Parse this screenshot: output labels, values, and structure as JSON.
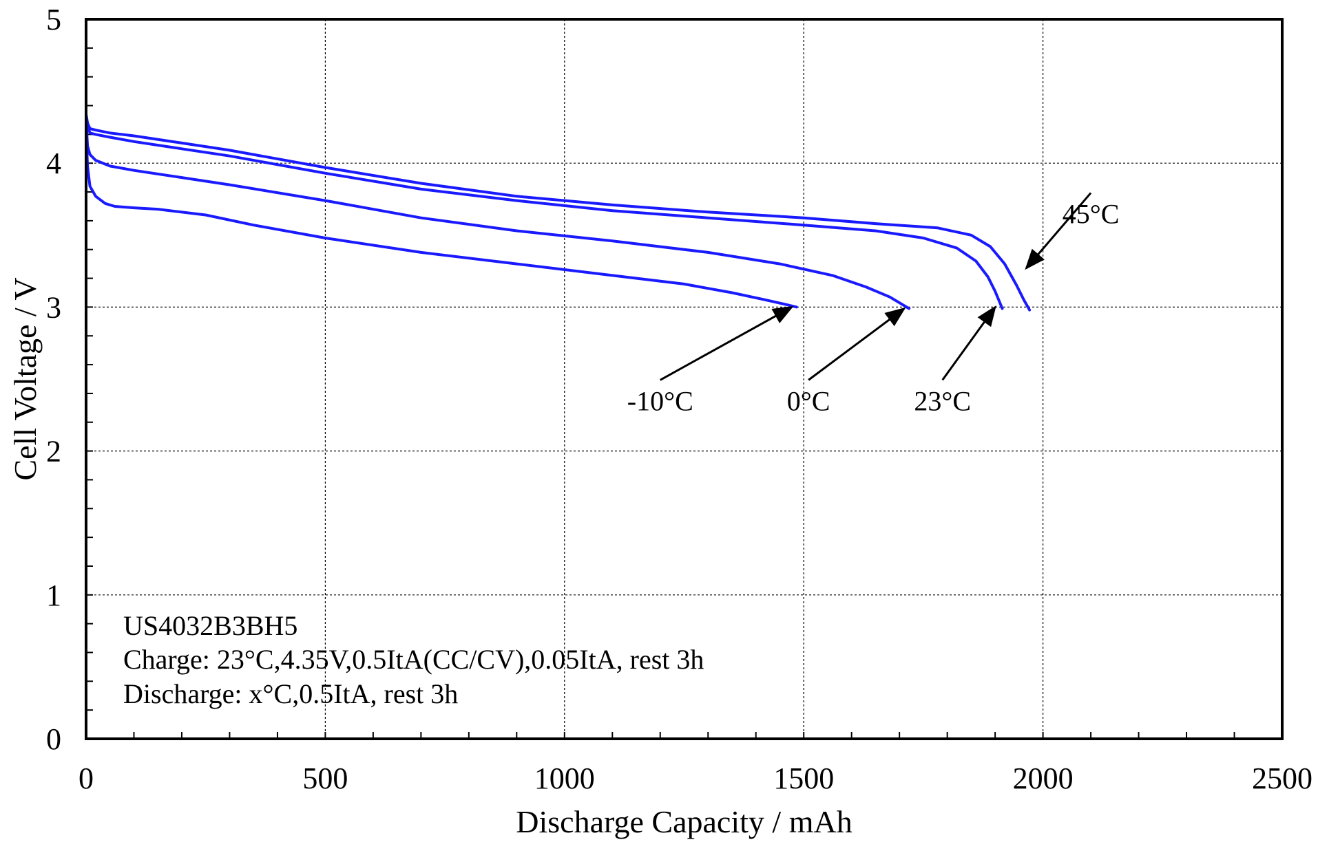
{
  "chart_data": {
    "type": "line",
    "title": "",
    "xlabel": "Discharge Capacity / mAh",
    "ylabel": "Cell Voltage / V",
    "xlim": [
      0,
      2500
    ],
    "ylim": [
      0,
      5
    ],
    "xticks": [
      "0",
      "500",
      "1000",
      "1500",
      "2000",
      "2500"
    ],
    "yticks": [
      "0",
      "1",
      "2",
      "3",
      "4",
      "5"
    ],
    "grid": true,
    "line_color": "#1a1aff",
    "notes": [
      "US4032B3BH5",
      "Charge: 23°C,4.35V,0.5ItA(CC/CV),0.05ItA, rest 3h",
      "Discharge: x°C,0.5ItA, rest 3h"
    ],
    "series": [
      {
        "name": "-10°C",
        "x": [
          0,
          3,
          8,
          20,
          40,
          60,
          100,
          150,
          250,
          350,
          500,
          700,
          900,
          1100,
          1250,
          1350,
          1420,
          1460,
          1485
        ],
        "y": [
          4.22,
          3.98,
          3.84,
          3.77,
          3.72,
          3.7,
          3.69,
          3.68,
          3.64,
          3.57,
          3.48,
          3.38,
          3.3,
          3.22,
          3.16,
          3.1,
          3.05,
          3.02,
          3.0
        ]
      },
      {
        "name": "0°C",
        "x": [
          0,
          3,
          8,
          20,
          50,
          100,
          200,
          300,
          500,
          700,
          900,
          1100,
          1300,
          1450,
          1560,
          1630,
          1680,
          1705,
          1720
        ],
        "y": [
          4.3,
          4.12,
          4.06,
          4.02,
          3.98,
          3.95,
          3.9,
          3.85,
          3.74,
          3.62,
          3.53,
          3.46,
          3.38,
          3.3,
          3.22,
          3.14,
          3.07,
          3.02,
          2.99
        ]
      },
      {
        "name": "23°C",
        "x": [
          0,
          3,
          8,
          20,
          50,
          100,
          200,
          300,
          500,
          700,
          900,
          1100,
          1300,
          1500,
          1650,
          1750,
          1820,
          1860,
          1885,
          1900,
          1915
        ],
        "y": [
          4.33,
          4.26,
          4.21,
          4.2,
          4.18,
          4.15,
          4.1,
          4.05,
          3.93,
          3.82,
          3.74,
          3.67,
          3.62,
          3.57,
          3.53,
          3.48,
          3.41,
          3.32,
          3.21,
          3.11,
          2.99
        ]
      },
      {
        "name": "45°C",
        "x": [
          0,
          3,
          8,
          20,
          50,
          100,
          200,
          300,
          500,
          700,
          900,
          1100,
          1300,
          1500,
          1650,
          1780,
          1850,
          1890,
          1920,
          1945,
          1960,
          1972
        ],
        "y": [
          4.34,
          4.28,
          4.24,
          4.23,
          4.21,
          4.19,
          4.14,
          4.09,
          3.97,
          3.86,
          3.77,
          3.71,
          3.66,
          3.62,
          3.58,
          3.55,
          3.5,
          3.42,
          3.3,
          3.15,
          3.05,
          2.98
        ]
      }
    ],
    "annotations": [
      {
        "text": "-10°C",
        "target": [
          1475,
          3.0
        ],
        "label_at": [
          1200,
          2.35
        ]
      },
      {
        "text": "0°C",
        "target": [
          1710,
          2.99
        ],
        "label_at": [
          1510,
          2.35
        ]
      },
      {
        "text": "23°C",
        "target": [
          1900,
          3.0
        ],
        "label_at": [
          1790,
          2.35
        ]
      },
      {
        "text": "45°C",
        "target": [
          1965,
          3.27
        ],
        "label_at": [
          2100,
          3.65
        ]
      }
    ]
  }
}
